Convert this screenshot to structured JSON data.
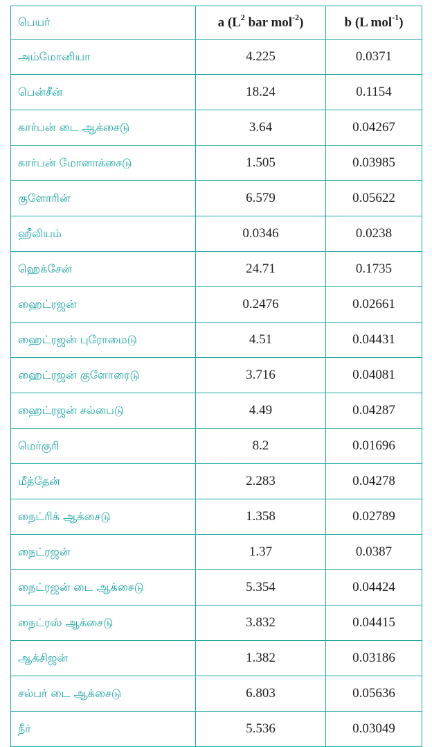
{
  "colors": {
    "accent": "#1aa5a4",
    "text": "#231f20"
  },
  "header": {
    "name": "பெயர்",
    "a_main": "a (L",
    "a_sup1": "2",
    "a_mid": " bar mol",
    "a_sup2": "-2",
    "a_end": ")",
    "b_main": "b (L mol",
    "b_sup": "-1",
    "b_end": ")"
  },
  "rows": [
    {
      "name": "அம்மோனியா",
      "a": "4.225",
      "b": "0.0371"
    },
    {
      "name": "பென்சீன்",
      "a": "18.24",
      "b": "0.1154"
    },
    {
      "name": "கார்பன் டை ஆக்சைடு",
      "a": "3.64",
      "b": "0.04267"
    },
    {
      "name": "கார்பன் மோனாக்சைடு",
      "a": "1.505",
      "b": "0.03985"
    },
    {
      "name": "குளோரின்",
      "a": "6.579",
      "b": "0.05622"
    },
    {
      "name": "ஹீலியம்",
      "a": "0.0346",
      "b": "0.0238"
    },
    {
      "name": "ஹெக்சேன்",
      "a": "24.71",
      "b": "0.1735"
    },
    {
      "name": "ஹைட்ரஜன்",
      "a": "0.2476",
      "b": "0.02661"
    },
    {
      "name": "ஹைட்ரஜன் புரோமைடு",
      "a": "4.51",
      "b": "0.04431"
    },
    {
      "name": "ஹைட்ரஜன் குளோரைடு",
      "a": "3.716",
      "b": "0.04081"
    },
    {
      "name": "ஹைட்ரஜன் சல்பைடு",
      "a": "4.49",
      "b": "0.04287"
    },
    {
      "name": "மெர்குரி",
      "a": "8.2",
      "b": "0.01696"
    },
    {
      "name": "மீத்தேன்",
      "a": "2.283",
      "b": "0.04278"
    },
    {
      "name": "நைட்ரிக் ஆக்சைடு",
      "a": "1.358",
      "b": "0.02789"
    },
    {
      "name": "நைட்ரஜன்",
      "a": "1.37",
      "b": "0.0387"
    },
    {
      "name": "நைட்ரஜன் டை ஆக்சைடு",
      "a": "5.354",
      "b": "0.04424"
    },
    {
      "name": "நைட்ரஸ் ஆக்சைடு",
      "a": "3.832",
      "b": "0.04415"
    },
    {
      "name": "ஆக்சிஜன்",
      "a": "1.382",
      "b": "0.03186"
    },
    {
      "name": "சல்பர் டை ஆக்சைடு",
      "a": "6.803",
      "b": "0.05636"
    },
    {
      "name": "நீர்",
      "a": "5.536",
      "b": "0.03049"
    }
  ]
}
